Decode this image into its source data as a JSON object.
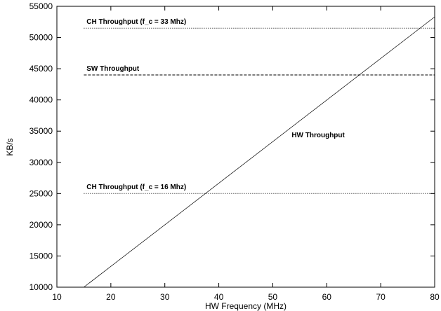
{
  "chart_data": {
    "type": "line",
    "title": "",
    "xlabel": "HW Frequency (MHz)",
    "ylabel": "KB/s",
    "xlim": [
      10,
      80
    ],
    "ylim": [
      10000,
      55000
    ],
    "xticks": [
      "10",
      "20",
      "30",
      "40",
      "50",
      "60",
      "70",
      "80"
    ],
    "yticks": [
      "10000",
      "15000",
      "20000",
      "25000",
      "30000",
      "35000",
      "40000",
      "45000",
      "50000",
      "55000"
    ],
    "grid": false,
    "series": [
      {
        "name": "CH Throughput (f_c = 33 Mhz)",
        "style": "dotted",
        "x": [
          15,
          80
        ],
        "y": [
          51500,
          51500
        ]
      },
      {
        "name": "SW Throughput",
        "style": "dashed",
        "x": [
          15,
          80
        ],
        "y": [
          44000,
          44000
        ]
      },
      {
        "name": "CH Throughput (f_c = 16 Mhz)",
        "style": "dotted",
        "x": [
          15,
          80
        ],
        "y": [
          25000,
          25000
        ]
      },
      {
        "name": "HW Throughput",
        "style": "solid",
        "x": [
          15,
          80
        ],
        "y": [
          10000,
          53300
        ]
      }
    ],
    "annotations": [
      {
        "text": "CH Throughput (f_c = 33 Mhz)",
        "x": 15.5,
        "y": 52200
      },
      {
        "text": "SW Throughput",
        "x": 15.5,
        "y": 44700
      },
      {
        "text": "CH Throughput (f_c = 16 Mhz)",
        "x": 15.5,
        "y": 25700
      },
      {
        "text": "HW Throughput",
        "x": 53.5,
        "y": 34000
      }
    ]
  }
}
